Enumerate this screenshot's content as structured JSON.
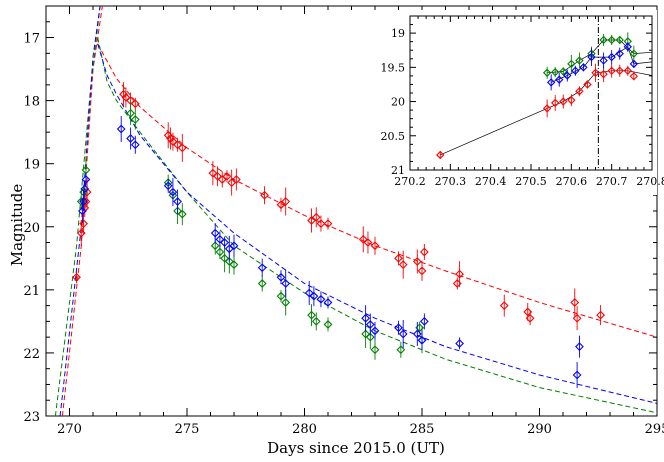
{
  "chart_data": [
    {
      "type": "scatter",
      "xlabel": "Days since 2015.0 (UT)",
      "ylabel": "Magnitude",
      "xlim": [
        269,
        295
      ],
      "ylim": [
        23,
        16.5
      ],
      "y_inverted": true,
      "xticks": [
        270,
        275,
        280,
        285,
        290,
        295
      ],
      "yticks": [
        17,
        18,
        19,
        20,
        21,
        22,
        23
      ],
      "marker": "open-diamond",
      "series": [
        {
          "color": "#ff0000",
          "points": [
            [
              270.3,
              20.8
            ],
            [
              270.5,
              20.1
            ],
            [
              270.6,
              19.95
            ],
            [
              270.65,
              19.7
            ],
            [
              270.7,
              19.6
            ],
            [
              270.75,
              19.45
            ],
            [
              272.3,
              17.9
            ],
            [
              272.4,
              17.95
            ],
            [
              272.6,
              18.0
            ],
            [
              272.8,
              18.05
            ],
            [
              274.2,
              18.55
            ],
            [
              274.3,
              18.6
            ],
            [
              274.4,
              18.65
            ],
            [
              274.6,
              18.7
            ],
            [
              274.8,
              18.75
            ],
            [
              276.1,
              19.15
            ],
            [
              276.3,
              19.2
            ],
            [
              276.5,
              19.25
            ],
            [
              276.7,
              19.2
            ],
            [
              276.9,
              19.3
            ],
            [
              277.1,
              19.25
            ],
            [
              278.3,
              19.5
            ],
            [
              279.0,
              19.65
            ],
            [
              279.2,
              19.6
            ],
            [
              280.3,
              19.9
            ],
            [
              280.5,
              19.85
            ],
            [
              280.7,
              19.95
            ],
            [
              281.0,
              19.95
            ],
            [
              282.5,
              20.2
            ],
            [
              282.7,
              20.25
            ],
            [
              283.0,
              20.3
            ],
            [
              284.0,
              20.5
            ],
            [
              284.2,
              20.6
            ],
            [
              284.8,
              20.55
            ],
            [
              285.0,
              20.7
            ],
            [
              285.1,
              20.4
            ],
            [
              286.5,
              20.9
            ],
            [
              286.6,
              20.75
            ],
            [
              288.5,
              21.25
            ],
            [
              289.5,
              21.35
            ],
            [
              289.6,
              21.45
            ],
            [
              291.5,
              21.2
            ],
            [
              291.6,
              21.45
            ],
            [
              292.6,
              21.4
            ]
          ]
        },
        {
          "color": "#008000",
          "points": [
            [
              270.5,
              19.6
            ],
            [
              270.6,
              19.45
            ],
            [
              270.7,
              19.1
            ],
            [
              272.6,
              18.2
            ],
            [
              272.8,
              18.3
            ],
            [
              274.2,
              19.3
            ],
            [
              274.4,
              19.5
            ],
            [
              274.6,
              19.75
            ],
            [
              274.8,
              19.8
            ],
            [
              276.2,
              20.3
            ],
            [
              276.4,
              20.4
            ],
            [
              276.6,
              20.5
            ],
            [
              276.8,
              20.55
            ],
            [
              277.0,
              20.6
            ],
            [
              278.2,
              20.9
            ],
            [
              279.0,
              21.1
            ],
            [
              279.2,
              21.2
            ],
            [
              280.3,
              21.4
            ],
            [
              280.5,
              21.5
            ],
            [
              281.0,
              21.55
            ],
            [
              282.6,
              21.7
            ],
            [
              282.8,
              21.75
            ],
            [
              283.0,
              21.95
            ],
            [
              284.1,
              21.95
            ],
            [
              284.9,
              21.6
            ],
            [
              285.0,
              21.8
            ]
          ]
        },
        {
          "color": "#0000ff",
          "points": [
            [
              270.55,
              19.75
            ],
            [
              270.6,
              19.6
            ],
            [
              270.65,
              19.4
            ],
            [
              270.7,
              19.25
            ],
            [
              272.2,
              18.45
            ],
            [
              272.6,
              18.6
            ],
            [
              272.8,
              18.7
            ],
            [
              274.2,
              19.35
            ],
            [
              274.4,
              19.45
            ],
            [
              274.6,
              19.6
            ],
            [
              276.2,
              20.1
            ],
            [
              276.4,
              20.2
            ],
            [
              276.6,
              20.25
            ],
            [
              276.8,
              20.35
            ],
            [
              277.0,
              20.3
            ],
            [
              278.2,
              20.65
            ],
            [
              279.0,
              20.8
            ],
            [
              279.2,
              20.9
            ],
            [
              280.2,
              21.05
            ],
            [
              280.4,
              21.1
            ],
            [
              280.7,
              21.15
            ],
            [
              281.0,
              21.2
            ],
            [
              282.6,
              21.45
            ],
            [
              282.8,
              21.55
            ],
            [
              283.0,
              21.65
            ],
            [
              284.0,
              21.6
            ],
            [
              284.2,
              21.7
            ],
            [
              284.8,
              21.7
            ],
            [
              285.0,
              21.8
            ],
            [
              285.1,
              21.5
            ],
            [
              286.6,
              21.85
            ],
            [
              291.6,
              22.35
            ],
            [
              291.7,
              21.9
            ]
          ]
        }
      ],
      "model_curves": [
        {
          "color": "#ff0000",
          "points": [
            [
              271.2,
              17.1
            ],
            [
              272,
              17.65
            ],
            [
              273,
              18.1
            ],
            [
              275,
              18.75
            ],
            [
              277,
              19.25
            ],
            [
              280,
              19.82
            ],
            [
              283,
              20.3
            ],
            [
              286,
              20.7
            ],
            [
              290,
              21.2
            ],
            [
              295,
              21.75
            ]
          ]
        },
        {
          "color": "#008000",
          "points": [
            [
              271.2,
              17.0
            ],
            [
              271.6,
              17.7
            ],
            [
              272,
              18.0
            ],
            [
              273,
              18.5
            ],
            [
              275,
              19.45
            ],
            [
              277,
              20.3
            ],
            [
              280,
              21.05
            ],
            [
              283,
              21.65
            ],
            [
              286,
              22.1
            ],
            [
              290,
              22.55
            ],
            [
              295,
              22.95
            ]
          ]
        },
        {
          "color": "#0000ff",
          "points": [
            [
              271.2,
              17.1
            ],
            [
              271.6,
              17.6
            ],
            [
              272,
              17.9
            ],
            [
              273,
              18.55
            ],
            [
              275,
              19.45
            ],
            [
              277,
              20.1
            ],
            [
              280,
              20.9
            ],
            [
              283,
              21.45
            ],
            [
              286,
              21.9
            ],
            [
              290,
              22.35
            ],
            [
              295,
              22.8
            ]
          ]
        }
      ],
      "rise_curves": [
        {
          "color": "#ff0000",
          "points": [
            [
              269.7,
              23
            ],
            [
              270.5,
              20.3
            ],
            [
              271.0,
              17.5
            ],
            [
              271.4,
              16.5
            ]
          ]
        },
        {
          "color": "#008000",
          "points": [
            [
              269.4,
              23
            ],
            [
              270.3,
              20.3
            ],
            [
              270.9,
              17.8
            ],
            [
              271.3,
              16.5
            ]
          ]
        },
        {
          "color": "#0000ff",
          "points": [
            [
              269.6,
              23
            ],
            [
              270.5,
              20.0
            ],
            [
              271.0,
              17.3
            ],
            [
              271.3,
              16.5
            ]
          ]
        }
      ]
    },
    {
      "type": "scatter",
      "xlim": [
        270.2,
        270.8
      ],
      "ylim": [
        21,
        18.75
      ],
      "y_inverted": true,
      "xticks": [
        270.2,
        270.3,
        270.4,
        270.5,
        270.6,
        270.7,
        270.8
      ],
      "xtick_labels": [
        "270.2",
        "270.3",
        "270.4",
        "270.5",
        "270.6",
        "270.7",
        "270.8"
      ],
      "yticks": [
        19,
        19.5,
        20,
        20.5,
        21
      ],
      "ytick_labels": [
        "19",
        "19.5",
        "20",
        "20.5",
        "21"
      ],
      "vertical_line_x": 270.667,
      "marker": "open-diamond",
      "series": [
        {
          "color": "#ff0000",
          "points": [
            [
              270.275,
              20.78
            ],
            [
              270.54,
              20.1
            ],
            [
              270.56,
              20.02
            ],
            [
              270.58,
              20.0
            ],
            [
              270.6,
              19.98
            ],
            [
              270.62,
              19.85
            ],
            [
              270.64,
              19.75
            ],
            [
              270.66,
              19.58
            ],
            [
              270.68,
              19.6
            ],
            [
              270.7,
              19.55
            ],
            [
              270.72,
              19.55
            ],
            [
              270.74,
              19.55
            ],
            [
              270.755,
              19.63
            ]
          ]
        },
        {
          "color": "#008000",
          "points": [
            [
              270.54,
              19.58
            ],
            [
              270.56,
              19.57
            ],
            [
              270.58,
              19.56
            ],
            [
              270.6,
              19.45
            ],
            [
              270.62,
              19.4
            ],
            [
              270.65,
              19.3
            ],
            [
              270.68,
              19.1
            ],
            [
              270.7,
              19.1
            ],
            [
              270.72,
              19.1
            ],
            [
              270.74,
              19.12
            ],
            [
              270.755,
              19.3
            ]
          ]
        },
        {
          "color": "#0000ff",
          "points": [
            [
              270.55,
              19.72
            ],
            [
              270.57,
              19.68
            ],
            [
              270.59,
              19.62
            ],
            [
              270.61,
              19.55
            ],
            [
              270.63,
              19.5
            ],
            [
              270.65,
              19.35
            ],
            [
              270.68,
              19.4
            ],
            [
              270.7,
              19.35
            ],
            [
              270.72,
              19.3
            ],
            [
              270.74,
              19.2
            ],
            [
              270.755,
              19.45
            ]
          ]
        }
      ],
      "connect_lines": [
        {
          "color": "#000000",
          "points": [
            [
              270.275,
              20.78
            ],
            [
              270.54,
              20.1
            ],
            [
              270.58,
              20.0
            ],
            [
              270.62,
              19.85
            ],
            [
              270.66,
              19.58
            ],
            [
              270.7,
              19.55
            ],
            [
              270.74,
              19.55
            ],
            [
              270.8,
              19.62
            ]
          ]
        },
        {
          "color": "#000000",
          "points": [
            [
              270.54,
              19.58
            ],
            [
              270.58,
              19.56
            ],
            [
              270.62,
              19.4
            ],
            [
              270.65,
              19.3
            ],
            [
              270.68,
              19.1
            ],
            [
              270.72,
              19.1
            ],
            [
              270.755,
              19.3
            ],
            [
              270.8,
              19.28
            ]
          ]
        },
        {
          "color": "#000000",
          "points": [
            [
              270.55,
              19.72
            ],
            [
              270.59,
              19.62
            ],
            [
              270.63,
              19.5
            ],
            [
              270.65,
              19.35
            ],
            [
              270.7,
              19.35
            ],
            [
              270.74,
              19.2
            ],
            [
              270.755,
              19.45
            ],
            [
              270.8,
              19.42
            ]
          ]
        }
      ]
    }
  ]
}
